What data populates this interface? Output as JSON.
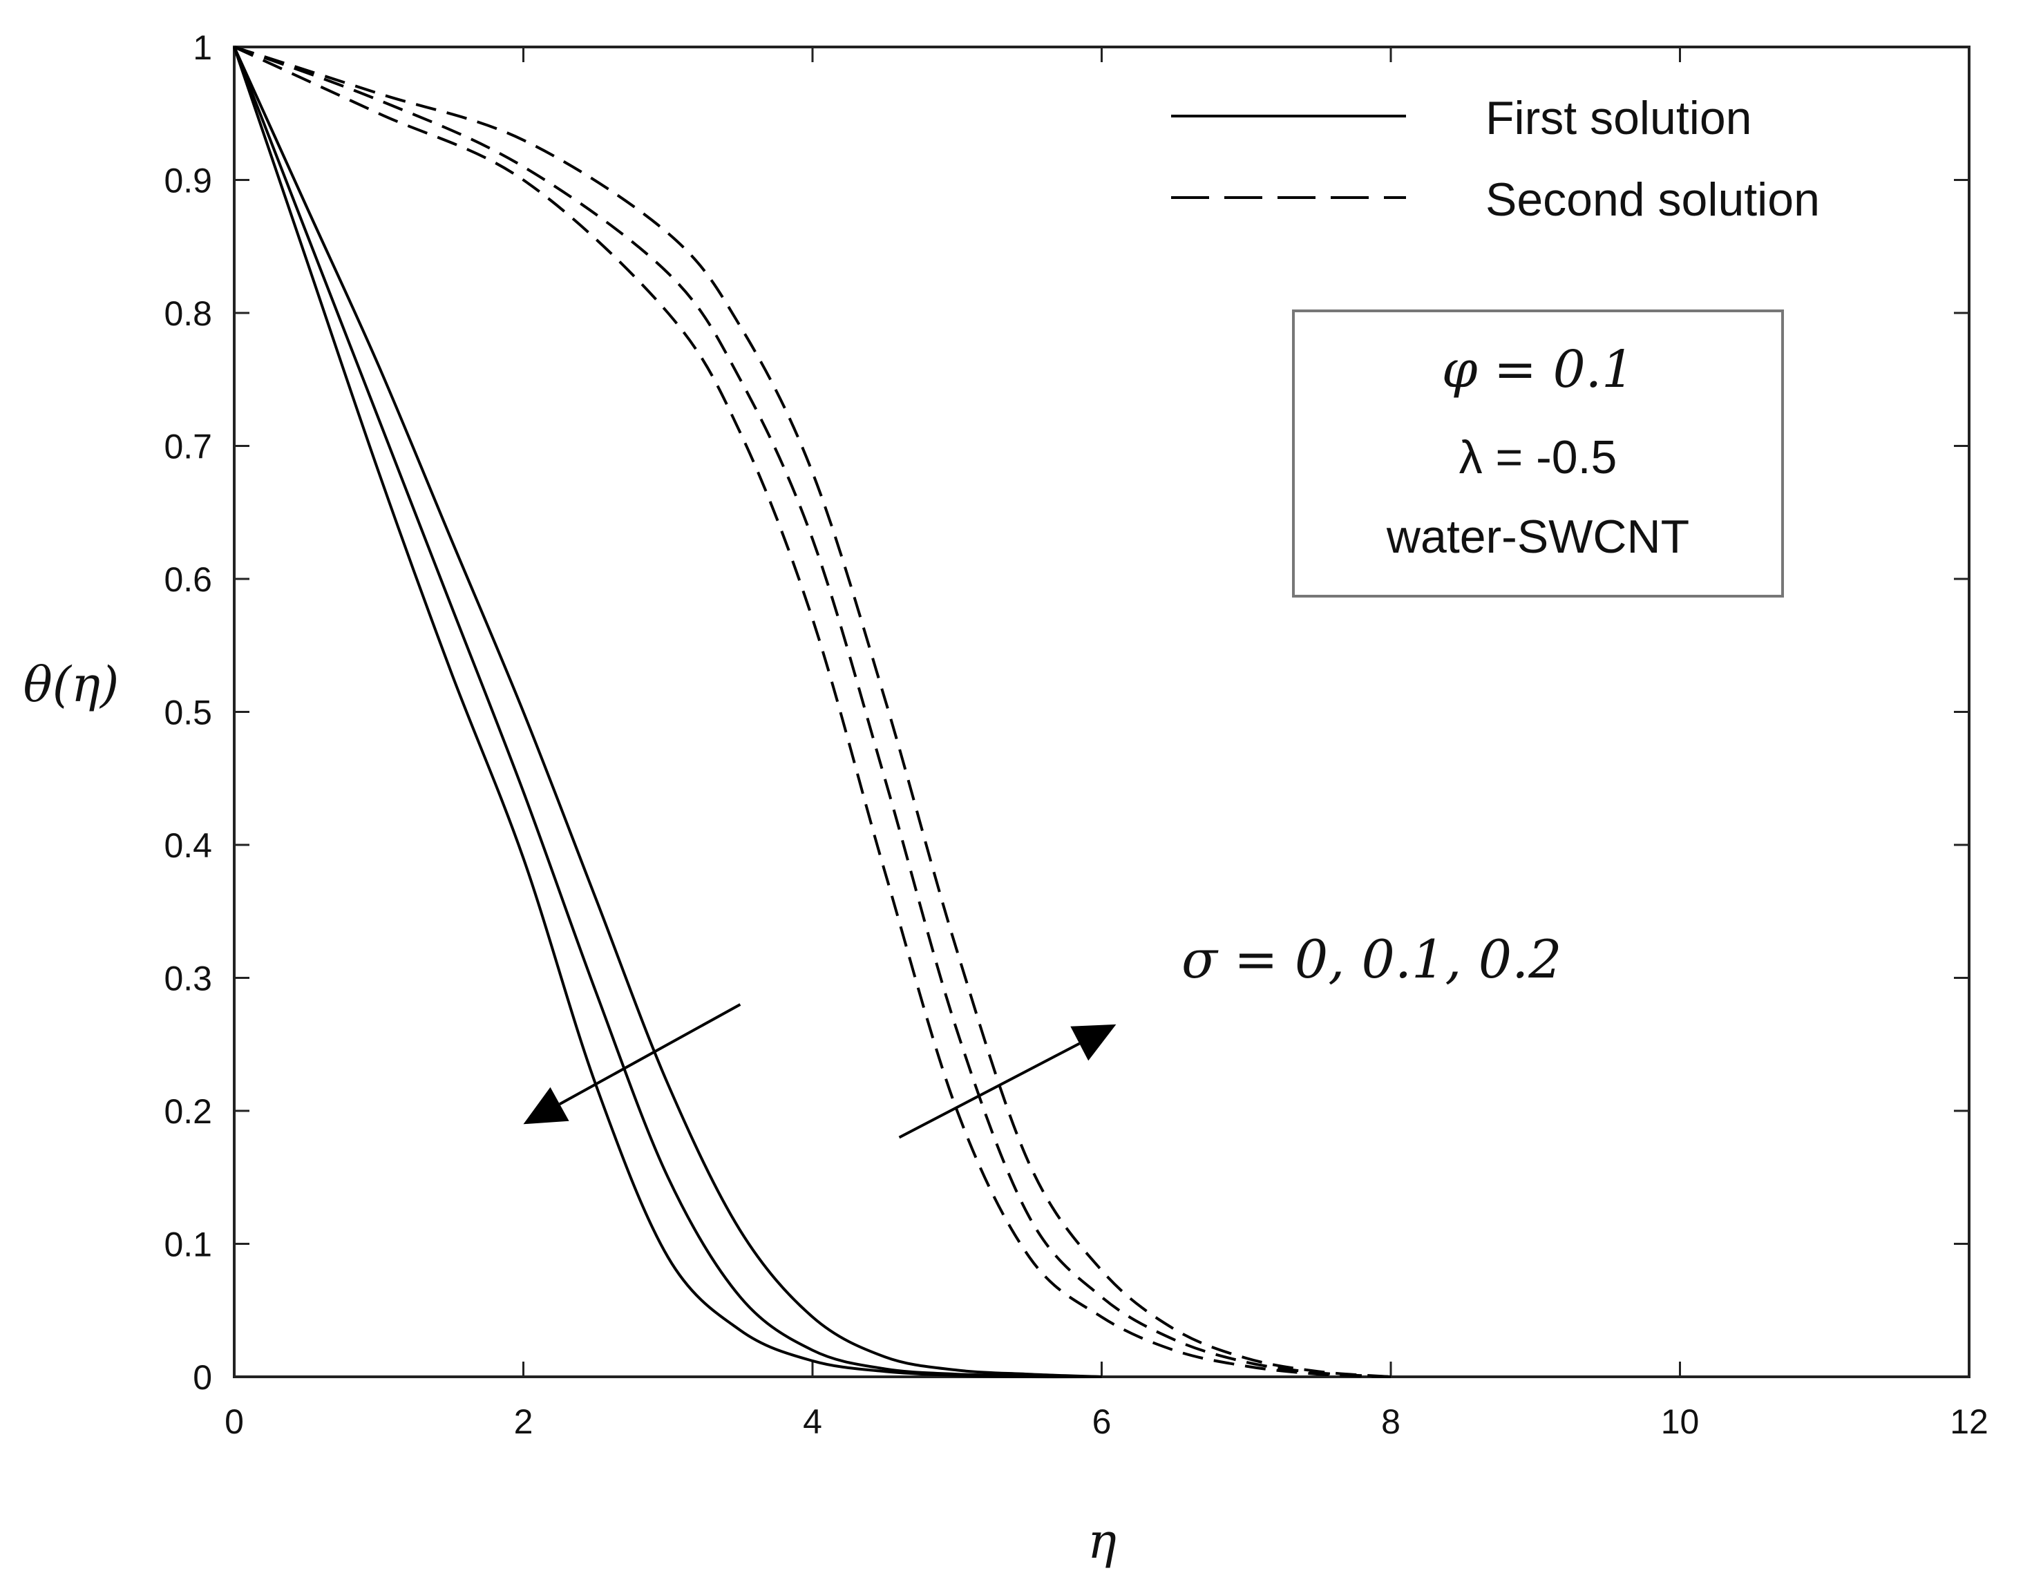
{
  "chart_data": {
    "type": "line",
    "title": "",
    "xlabel": "η",
    "ylabel": "θ(η)",
    "xlim": [
      0,
      12
    ],
    "ylim": [
      0,
      1
    ],
    "xticks": [
      0,
      2,
      4,
      6,
      8,
      10,
      12
    ],
    "xtick_labels": [
      "0",
      "2",
      "4",
      "6",
      "8",
      "10",
      "12"
    ],
    "yticks": [
      0,
      0.1,
      0.2,
      0.3,
      0.4,
      0.5,
      0.6,
      0.7,
      0.8,
      0.9,
      1
    ],
    "ytick_labels": [
      "0",
      "0.1",
      "0.2",
      "0.3",
      "0.4",
      "0.5",
      "0.6",
      "0.7",
      "0.8",
      "0.9",
      "1"
    ],
    "grid": false,
    "legend": {
      "position": "top-right",
      "entries": [
        {
          "label": "First solution",
          "style": "solid"
        },
        {
          "label": "Second solution",
          "style": "dashed"
        }
      ]
    },
    "parameter_box": {
      "line1": "φ = 0.1",
      "line2": "λ = -0.5",
      "line3": "water-SWCNT"
    },
    "annotation": "σ = 0, 0.1, 0.2",
    "series": [
      {
        "name": "First solution, σ = 0",
        "style": "solid",
        "x": [
          0,
          0.5,
          1,
          1.5,
          2,
          2.5,
          3,
          3.5,
          4,
          4.5,
          5,
          5.5,
          6
        ],
        "y": [
          1,
          0.84,
          0.68,
          0.53,
          0.39,
          0.22,
          0.09,
          0.035,
          0.012,
          0.004,
          0.001,
          0,
          0
        ]
      },
      {
        "name": "First solution, σ = 0.1",
        "style": "solid",
        "x": [
          0,
          0.5,
          1,
          1.5,
          2,
          2.5,
          3,
          3.5,
          4,
          4.5,
          5,
          5.5,
          6
        ],
        "y": [
          1,
          0.86,
          0.72,
          0.58,
          0.44,
          0.29,
          0.15,
          0.06,
          0.02,
          0.006,
          0.002,
          0.001,
          0
        ]
      },
      {
        "name": "First solution, σ = 0.2",
        "style": "solid",
        "x": [
          0,
          0.5,
          1,
          1.5,
          2,
          2.5,
          3,
          3.5,
          4,
          4.5,
          5,
          5.5,
          6
        ],
        "y": [
          1,
          0.88,
          0.76,
          0.63,
          0.5,
          0.36,
          0.22,
          0.11,
          0.045,
          0.015,
          0.005,
          0.002,
          0
        ]
      },
      {
        "name": "Second solution, σ = 0",
        "style": "dashed",
        "x": [
          0,
          1,
          2,
          3,
          3.5,
          4,
          4.5,
          5,
          5.5,
          6,
          6.5,
          7,
          7.5,
          8
        ],
        "y": [
          1,
          0.95,
          0.9,
          0.8,
          0.71,
          0.57,
          0.38,
          0.2,
          0.09,
          0.045,
          0.02,
          0.008,
          0.002,
          0
        ]
      },
      {
        "name": "Second solution, σ = 0.1",
        "style": "dashed",
        "x": [
          0,
          1,
          2,
          3,
          3.5,
          4,
          4.5,
          5,
          5.5,
          6,
          6.5,
          7,
          7.5,
          8
        ],
        "y": [
          1,
          0.96,
          0.91,
          0.83,
          0.75,
          0.63,
          0.45,
          0.26,
          0.12,
          0.06,
          0.028,
          0.011,
          0.003,
          0
        ]
      },
      {
        "name": "Second solution, σ = 0.2",
        "style": "dashed",
        "x": [
          0,
          1,
          2,
          3,
          3.5,
          4,
          4.5,
          5,
          5.5,
          6,
          6.5,
          7,
          7.5,
          8
        ],
        "y": [
          1,
          0.965,
          0.93,
          0.86,
          0.79,
          0.68,
          0.51,
          0.32,
          0.16,
          0.08,
          0.036,
          0.014,
          0.004,
          0
        ]
      }
    ],
    "arrows": [
      {
        "name": "first-solution-trend",
        "from": [
          3.5,
          0.28
        ],
        "to": [
          2.0,
          0.19
        ]
      },
      {
        "name": "second-solution-trend",
        "from": [
          4.6,
          0.18
        ],
        "to": [
          6.1,
          0.265
        ]
      }
    ]
  }
}
